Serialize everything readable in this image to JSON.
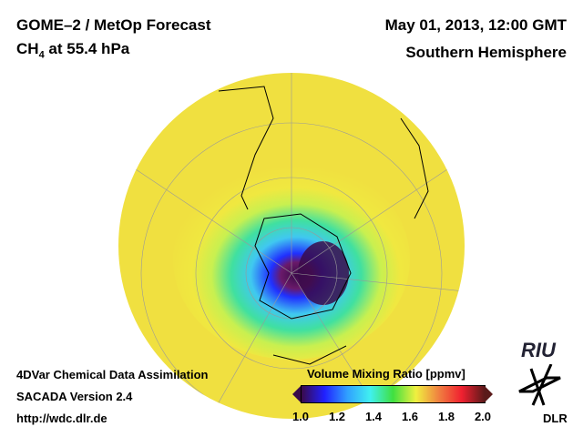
{
  "header": {
    "title": "GOME–2 / MetOp Forecast",
    "species": "CH",
    "species_sub": "4",
    "level": " at 55.4 hPa",
    "date": "May 01, 2013, 12:00 GMT",
    "region": "Southern Hemisphere"
  },
  "footer": {
    "line1": "4DVar Chemical Data Assimilation",
    "line2": "SACADA Version 2.4",
    "line3": "http://wdc.dlr.de"
  },
  "colorbar": {
    "title": "Volume Mixing Ratio [ppmv]",
    "ticks": [
      "1.0",
      "1.2",
      "1.4",
      "1.6",
      "1.8",
      "2.0"
    ],
    "colors": [
      "#3a0a4a",
      "#2020ff",
      "#30a0ff",
      "#40f0f0",
      "#40e040",
      "#f0f040",
      "#f08040",
      "#f02030",
      "#5a1a1a"
    ]
  },
  "logos": {
    "riu": "RIU",
    "dlr": "DLR"
  }
}
